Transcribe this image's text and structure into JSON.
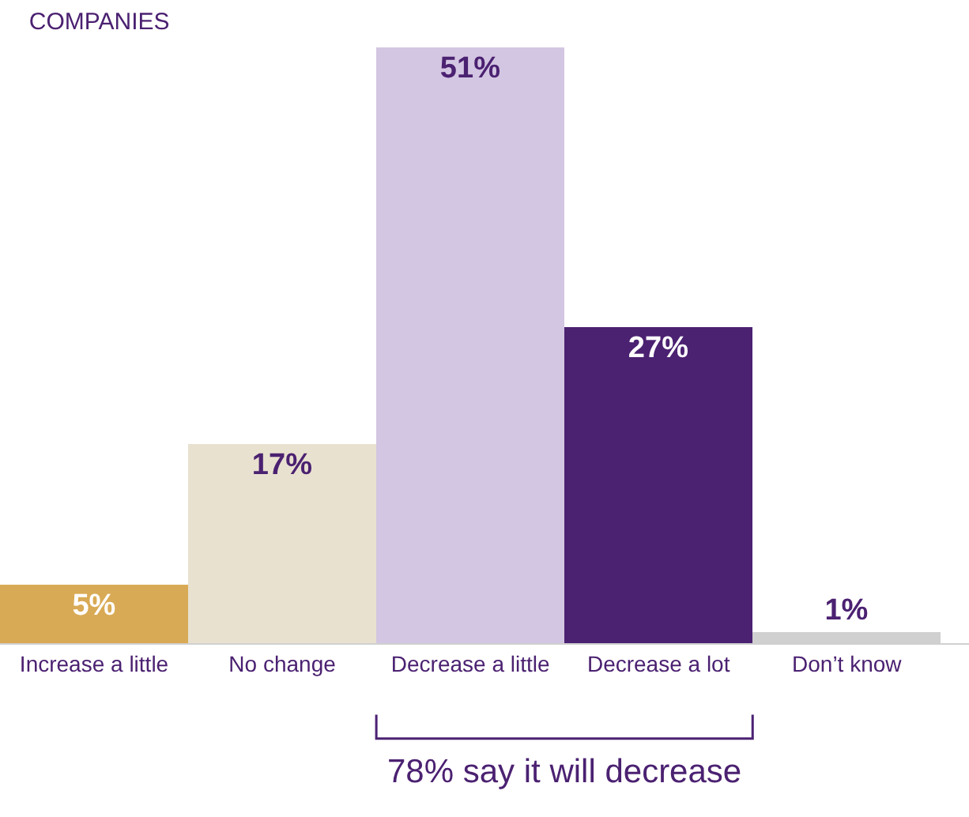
{
  "chart_data": {
    "type": "bar",
    "title": "COMPANIES",
    "categories": [
      "Increase a little",
      "No change",
      "Decrease a little",
      "Decrease a lot",
      "Don’t know"
    ],
    "values": [
      5,
      17,
      51,
      27,
      1
    ],
    "colors": [
      "#d9aa55",
      "#e8e1d0",
      "#d3c6e2",
      "#4b2171",
      "#d0d0d0"
    ],
    "value_labels": [
      "5%",
      "17%",
      "51%",
      "27%",
      "1%"
    ],
    "annotations": [
      "78% say it will decrease"
    ]
  }
}
